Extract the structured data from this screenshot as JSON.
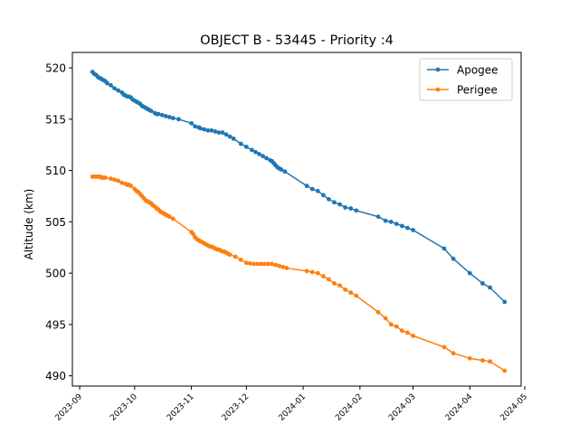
{
  "chart_data": {
    "type": "line",
    "title": "OBJECT B - 53445 - Priority :4",
    "xlabel": "",
    "ylabel": "Altitude (km)",
    "xlim": [
      "2023-08-28",
      "2024-04-29"
    ],
    "ylim": [
      489.0,
      521.5
    ],
    "yticks": [
      490,
      495,
      500,
      505,
      510,
      515,
      520
    ],
    "xticks": [
      "2023-09",
      "2023-10",
      "2023-11",
      "2023-12",
      "2024-01",
      "2024-02",
      "2024-03",
      "2024-04",
      "2024-05"
    ],
    "grid": false,
    "legend_position": "upper-right",
    "series": [
      {
        "name": "Apogee",
        "color": "#1f77b4",
        "marker": "circle",
        "points": [
          [
            "2023-09-08",
            519.6
          ],
          [
            "2023-09-09",
            519.4
          ],
          [
            "2023-09-10",
            519.3
          ],
          [
            "2023-09-11",
            519.1
          ],
          [
            "2023-09-12",
            519.0
          ],
          [
            "2023-09-13",
            518.9
          ],
          [
            "2023-09-14",
            518.8
          ],
          [
            "2023-09-15",
            518.7
          ],
          [
            "2023-09-16",
            518.5
          ],
          [
            "2023-09-18",
            518.3
          ],
          [
            "2023-09-20",
            518.0
          ],
          [
            "2023-09-22",
            517.8
          ],
          [
            "2023-09-24",
            517.6
          ],
          [
            "2023-09-25",
            517.4
          ],
          [
            "2023-09-26",
            517.3
          ],
          [
            "2023-09-27",
            517.2
          ],
          [
            "2023-09-28",
            517.2
          ],
          [
            "2023-09-29",
            517.1
          ],
          [
            "2023-09-30",
            516.9
          ],
          [
            "2023-10-01",
            516.8
          ],
          [
            "2023-10-02",
            516.7
          ],
          [
            "2023-10-03",
            516.6
          ],
          [
            "2023-10-04",
            516.5
          ],
          [
            "2023-10-05",
            516.3
          ],
          [
            "2023-10-06",
            516.2
          ],
          [
            "2023-10-07",
            516.1
          ],
          [
            "2023-10-08",
            516.0
          ],
          [
            "2023-10-09",
            515.9
          ],
          [
            "2023-10-10",
            515.8
          ],
          [
            "2023-10-12",
            515.6
          ],
          [
            "2023-10-13",
            515.5
          ],
          [
            "2023-10-14",
            515.5
          ],
          [
            "2023-10-16",
            515.4
          ],
          [
            "2023-10-18",
            515.3
          ],
          [
            "2023-10-20",
            515.2
          ],
          [
            "2023-10-22",
            515.1
          ],
          [
            "2023-10-25",
            515.0
          ],
          [
            "2023-11-01",
            514.6
          ],
          [
            "2023-11-03",
            514.3
          ],
          [
            "2023-11-05",
            514.2
          ],
          [
            "2023-11-06",
            514.1
          ],
          [
            "2023-11-08",
            514.0
          ],
          [
            "2023-11-10",
            513.9
          ],
          [
            "2023-11-12",
            513.9
          ],
          [
            "2023-11-14",
            513.8
          ],
          [
            "2023-11-16",
            513.7
          ],
          [
            "2023-11-18",
            513.7
          ],
          [
            "2023-11-20",
            513.5
          ],
          [
            "2023-11-22",
            513.3
          ],
          [
            "2023-11-24",
            513.1
          ],
          [
            "2023-11-28",
            512.6
          ],
          [
            "2023-12-01",
            512.3
          ],
          [
            "2023-12-04",
            512.0
          ],
          [
            "2023-12-06",
            511.8
          ],
          [
            "2023-12-08",
            511.6
          ],
          [
            "2023-12-10",
            511.4
          ],
          [
            "2023-12-12",
            511.2
          ],
          [
            "2023-12-14",
            511.0
          ],
          [
            "2023-12-15",
            510.9
          ],
          [
            "2023-12-16",
            510.7
          ],
          [
            "2023-12-17",
            510.5
          ],
          [
            "2023-12-18",
            510.3
          ],
          [
            "2023-12-19",
            510.2
          ],
          [
            "2023-12-20",
            510.1
          ],
          [
            "2023-12-22",
            509.9
          ],
          [
            "2024-01-03",
            508.5
          ],
          [
            "2024-01-06",
            508.2
          ],
          [
            "2024-01-09",
            508.0
          ],
          [
            "2024-01-12",
            507.6
          ],
          [
            "2024-01-15",
            507.2
          ],
          [
            "2024-01-18",
            506.9
          ],
          [
            "2024-01-21",
            506.7
          ],
          [
            "2024-01-24",
            506.4
          ],
          [
            "2024-01-27",
            506.3
          ],
          [
            "2024-01-30",
            506.1
          ],
          [
            "2024-02-11",
            505.5
          ],
          [
            "2024-02-15",
            505.1
          ],
          [
            "2024-02-18",
            505.0
          ],
          [
            "2024-02-21",
            504.8
          ],
          [
            "2024-02-24",
            504.6
          ],
          [
            "2024-02-27",
            504.4
          ],
          [
            "2024-03-01",
            504.2
          ],
          [
            "2024-03-18",
            502.4
          ],
          [
            "2024-03-23",
            501.4
          ],
          [
            "2024-04-01",
            500.0
          ],
          [
            "2024-04-08",
            499.0
          ],
          [
            "2024-04-12",
            498.6
          ],
          [
            "2024-04-20",
            497.2
          ]
        ]
      },
      {
        "name": "Perigee",
        "color": "#ff7f0e",
        "marker": "circle",
        "points": [
          [
            "2023-09-08",
            509.4
          ],
          [
            "2023-09-09",
            509.4
          ],
          [
            "2023-09-10",
            509.4
          ],
          [
            "2023-09-11",
            509.4
          ],
          [
            "2023-09-12",
            509.4
          ],
          [
            "2023-09-13",
            509.3
          ],
          [
            "2023-09-14",
            509.3
          ],
          [
            "2023-09-15",
            509.3
          ],
          [
            "2023-09-18",
            509.2
          ],
          [
            "2023-09-20",
            509.1
          ],
          [
            "2023-09-22",
            509.0
          ],
          [
            "2023-09-24",
            508.8
          ],
          [
            "2023-09-26",
            508.7
          ],
          [
            "2023-09-27",
            508.6
          ],
          [
            "2023-09-28",
            508.6
          ],
          [
            "2023-09-29",
            508.5
          ],
          [
            "2023-10-01",
            508.2
          ],
          [
            "2023-10-02",
            508.0
          ],
          [
            "2023-10-03",
            507.9
          ],
          [
            "2023-10-04",
            507.7
          ],
          [
            "2023-10-05",
            507.5
          ],
          [
            "2023-10-06",
            507.3
          ],
          [
            "2023-10-07",
            507.1
          ],
          [
            "2023-10-08",
            507.0
          ],
          [
            "2023-10-09",
            506.9
          ],
          [
            "2023-10-10",
            506.8
          ],
          [
            "2023-10-11",
            506.6
          ],
          [
            "2023-10-12",
            506.5
          ],
          [
            "2023-10-13",
            506.3
          ],
          [
            "2023-10-14",
            506.2
          ],
          [
            "2023-10-15",
            506.0
          ],
          [
            "2023-10-16",
            505.9
          ],
          [
            "2023-10-17",
            505.8
          ],
          [
            "2023-10-18",
            505.7
          ],
          [
            "2023-10-19",
            505.6
          ],
          [
            "2023-10-20",
            505.5
          ],
          [
            "2023-10-22",
            505.3
          ],
          [
            "2023-11-01",
            504.0
          ],
          [
            "2023-11-02",
            503.8
          ],
          [
            "2023-11-03",
            503.5
          ],
          [
            "2023-11-04",
            503.3
          ],
          [
            "2023-11-05",
            503.2
          ],
          [
            "2023-11-06",
            503.1
          ],
          [
            "2023-11-07",
            503.0
          ],
          [
            "2023-11-08",
            502.9
          ],
          [
            "2023-11-09",
            502.8
          ],
          [
            "2023-11-10",
            502.7
          ],
          [
            "2023-11-11",
            502.6
          ],
          [
            "2023-11-12",
            502.6
          ],
          [
            "2023-11-13",
            502.5
          ],
          [
            "2023-11-14",
            502.4
          ],
          [
            "2023-11-15",
            502.3
          ],
          [
            "2023-11-16",
            502.3
          ],
          [
            "2023-11-17",
            502.2
          ],
          [
            "2023-11-18",
            502.1
          ],
          [
            "2023-11-19",
            502.1
          ],
          [
            "2023-11-20",
            502.0
          ],
          [
            "2023-11-21",
            501.9
          ],
          [
            "2023-11-22",
            501.8
          ],
          [
            "2023-11-25",
            501.6
          ],
          [
            "2023-11-28",
            501.3
          ],
          [
            "2023-12-01",
            501.0
          ],
          [
            "2023-12-03",
            500.95
          ],
          [
            "2023-12-05",
            500.9
          ],
          [
            "2023-12-07",
            500.9
          ],
          [
            "2023-12-09",
            500.9
          ],
          [
            "2023-12-11",
            500.9
          ],
          [
            "2023-12-13",
            500.9
          ],
          [
            "2023-12-15",
            500.9
          ],
          [
            "2023-12-17",
            500.8
          ],
          [
            "2023-12-19",
            500.7
          ],
          [
            "2023-12-21",
            500.6
          ],
          [
            "2023-12-23",
            500.5
          ],
          [
            "2024-01-03",
            500.2
          ],
          [
            "2024-01-06",
            500.1
          ],
          [
            "2024-01-09",
            500.0
          ],
          [
            "2024-01-12",
            499.7
          ],
          [
            "2024-01-15",
            499.4
          ],
          [
            "2024-01-18",
            499.0
          ],
          [
            "2024-01-21",
            498.8
          ],
          [
            "2024-01-24",
            498.4
          ],
          [
            "2024-01-27",
            498.1
          ],
          [
            "2024-01-30",
            497.8
          ],
          [
            "2024-02-11",
            496.2
          ],
          [
            "2024-02-15",
            495.6
          ],
          [
            "2024-02-18",
            495.0
          ],
          [
            "2024-02-21",
            494.8
          ],
          [
            "2024-02-24",
            494.4
          ],
          [
            "2024-02-27",
            494.2
          ],
          [
            "2024-03-01",
            493.9
          ],
          [
            "2024-03-18",
            492.8
          ],
          [
            "2024-03-23",
            492.2
          ],
          [
            "2024-04-01",
            491.7
          ],
          [
            "2024-04-08",
            491.5
          ],
          [
            "2024-04-12",
            491.4
          ],
          [
            "2024-04-20",
            490.5
          ]
        ]
      }
    ]
  }
}
